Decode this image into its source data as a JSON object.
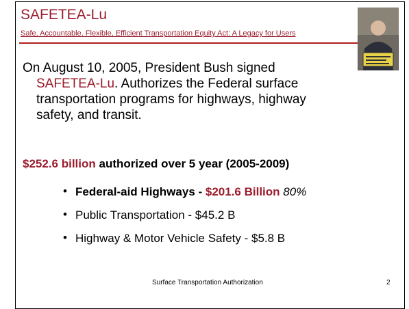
{
  "header": {
    "title": "SAFETEA-Lu",
    "subtitle": "Safe, Accountable, Flexible, Efficient Transportation Equity Act: A Legacy for Users"
  },
  "intro": {
    "line1": "On August 10, 2005, President Bush signed",
    "name": "SAFETEA-Lu",
    "line2": ".  Authorizes the Federal surface",
    "line3": "transportation programs for highways, highway",
    "line4": "safety, and transit."
  },
  "summary": {
    "amount": "$252.6 billion",
    "text": "authorized over 5 year (2005-2009)"
  },
  "bullets": [
    {
      "label": "Federal-aid Highways - ",
      "amount": "$201.6 Billion",
      "share": "80%"
    },
    {
      "text": "Public Transportation - $45.2 B"
    },
    {
      "text": "Highway & Motor Vehicle Safety - $5.8 B"
    }
  ],
  "footer": {
    "text": "Surface Transportation Authorization",
    "page": "2"
  }
}
